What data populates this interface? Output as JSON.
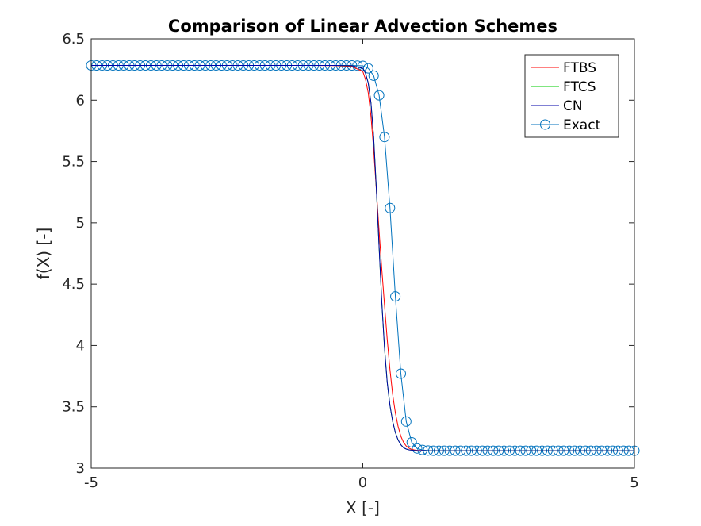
{
  "chart_data": {
    "type": "line",
    "title": "Comparison of Linear Advection Schemes",
    "xlabel": "X [-]",
    "ylabel": "f(X) [-]",
    "xlim": [
      -5,
      5
    ],
    "ylim": [
      3,
      6.5
    ],
    "xticks": [
      -5,
      0,
      5
    ],
    "yticks": [
      3,
      3.5,
      4,
      4.5,
      5,
      5.5,
      6,
      6.5
    ],
    "xtick_labels": [
      "-5",
      "0",
      "5"
    ],
    "ytick_labels": [
      "3",
      "3.5",
      "4",
      "4.5",
      "5",
      "5.5",
      "6",
      "6.5"
    ],
    "grid": false,
    "legend_position": "top-right",
    "series": [
      {
        "name": "FTBS",
        "color": "#ff0000",
        "marker": "none",
        "x": [
          -5,
          -1,
          -0.5,
          -0.2,
          0,
          0.05,
          0.1,
          0.15,
          0.2,
          0.25,
          0.3,
          0.35,
          0.4,
          0.45,
          0.5,
          0.55,
          0.6,
          0.65,
          0.7,
          0.75,
          0.8,
          0.85,
          0.9,
          0.95,
          1.0,
          1.2,
          1.5,
          5
        ],
        "y": [
          6.283,
          6.283,
          6.282,
          6.274,
          6.235,
          6.17,
          6.06,
          5.87,
          5.6,
          5.27,
          4.93,
          4.62,
          4.33,
          4.05,
          3.8,
          3.6,
          3.45,
          3.34,
          3.26,
          3.21,
          3.18,
          3.163,
          3.153,
          3.148,
          3.145,
          3.142,
          3.142,
          3.142
        ]
      },
      {
        "name": "FTCS",
        "color": "#00cc00",
        "marker": "none",
        "x": [
          -5,
          -1,
          -0.5,
          -0.2,
          0,
          0.05,
          0.1,
          0.15,
          0.2,
          0.25,
          0.3,
          0.35,
          0.4,
          0.45,
          0.5,
          0.55,
          0.6,
          0.65,
          0.7,
          0.75,
          0.8,
          0.85,
          0.9,
          0.95,
          1.0,
          1.2,
          1.5,
          5
        ],
        "y": [
          6.283,
          6.283,
          6.283,
          6.281,
          6.26,
          6.22,
          6.14,
          5.98,
          5.7,
          5.28,
          4.8,
          4.35,
          3.98,
          3.7,
          3.51,
          3.38,
          3.29,
          3.23,
          3.19,
          3.166,
          3.155,
          3.149,
          3.146,
          3.144,
          3.143,
          3.142,
          3.142,
          3.142
        ]
      },
      {
        "name": "CN",
        "color": "#0000a8",
        "marker": "none",
        "x": [
          -5,
          -1,
          -0.5,
          -0.2,
          0,
          0.05,
          0.1,
          0.15,
          0.2,
          0.25,
          0.3,
          0.35,
          0.4,
          0.45,
          0.5,
          0.55,
          0.6,
          0.65,
          0.7,
          0.75,
          0.8,
          0.85,
          0.9,
          0.95,
          1.0,
          1.2,
          1.5,
          5
        ],
        "y": [
          6.283,
          6.283,
          6.283,
          6.281,
          6.26,
          6.22,
          6.14,
          5.98,
          5.7,
          5.28,
          4.8,
          4.35,
          3.98,
          3.7,
          3.51,
          3.38,
          3.29,
          3.23,
          3.19,
          3.166,
          3.155,
          3.149,
          3.146,
          3.144,
          3.143,
          3.142,
          3.142,
          3.142
        ]
      },
      {
        "name": "Exact",
        "color": "#0072bd",
        "marker": "circle",
        "x": [
          -5,
          -4.9,
          -4.8,
          -4.7,
          -4.6,
          -4.5,
          -4.4,
          -4.3,
          -4.2,
          -4.1,
          -4.0,
          -3.9,
          -3.8,
          -3.7,
          -3.6,
          -3.5,
          -3.4,
          -3.3,
          -3.2,
          -3.1,
          -3.0,
          -2.9,
          -2.8,
          -2.7,
          -2.6,
          -2.5,
          -2.4,
          -2.3,
          -2.2,
          -2.1,
          -2.0,
          -1.9,
          -1.8,
          -1.7,
          -1.6,
          -1.5,
          -1.4,
          -1.3,
          -1.2,
          -1.1,
          -1.0,
          -0.9,
          -0.8,
          -0.7,
          -0.6,
          -0.5,
          -0.4,
          -0.3,
          -0.2,
          -0.1,
          0.0,
          0.1,
          0.2,
          0.3,
          0.4,
          0.5,
          0.6,
          0.7,
          0.8,
          0.9,
          1.0,
          1.1,
          1.2,
          1.3,
          1.4,
          1.5,
          1.6,
          1.7,
          1.8,
          1.9,
          2.0,
          2.1,
          2.2,
          2.3,
          2.4,
          2.5,
          2.6,
          2.7,
          2.8,
          2.9,
          3.0,
          3.1,
          3.2,
          3.3,
          3.4,
          3.5,
          3.6,
          3.7,
          3.8,
          3.9,
          4.0,
          4.1,
          4.2,
          4.3,
          4.4,
          4.5,
          4.6,
          4.7,
          4.8,
          4.9,
          5.0
        ],
        "y": [
          6.283,
          6.283,
          6.283,
          6.283,
          6.283,
          6.283,
          6.283,
          6.283,
          6.283,
          6.283,
          6.283,
          6.283,
          6.283,
          6.283,
          6.283,
          6.283,
          6.283,
          6.283,
          6.283,
          6.283,
          6.283,
          6.283,
          6.283,
          6.283,
          6.283,
          6.283,
          6.283,
          6.283,
          6.283,
          6.283,
          6.283,
          6.283,
          6.283,
          6.283,
          6.283,
          6.283,
          6.283,
          6.283,
          6.283,
          6.283,
          6.283,
          6.283,
          6.283,
          6.283,
          6.283,
          6.283,
          6.283,
          6.283,
          6.283,
          6.282,
          6.28,
          6.26,
          6.2,
          6.04,
          5.7,
          5.12,
          4.4,
          3.77,
          3.38,
          3.21,
          3.16,
          3.148,
          3.143,
          3.142,
          3.142,
          3.142,
          3.142,
          3.142,
          3.142,
          3.142,
          3.142,
          3.142,
          3.142,
          3.142,
          3.142,
          3.142,
          3.142,
          3.142,
          3.142,
          3.142,
          3.142,
          3.142,
          3.142,
          3.142,
          3.142,
          3.142,
          3.142,
          3.142,
          3.142,
          3.142,
          3.142,
          3.142,
          3.142,
          3.142,
          3.142,
          3.142,
          3.142,
          3.142,
          3.142,
          3.142,
          3.142
        ]
      }
    ]
  }
}
